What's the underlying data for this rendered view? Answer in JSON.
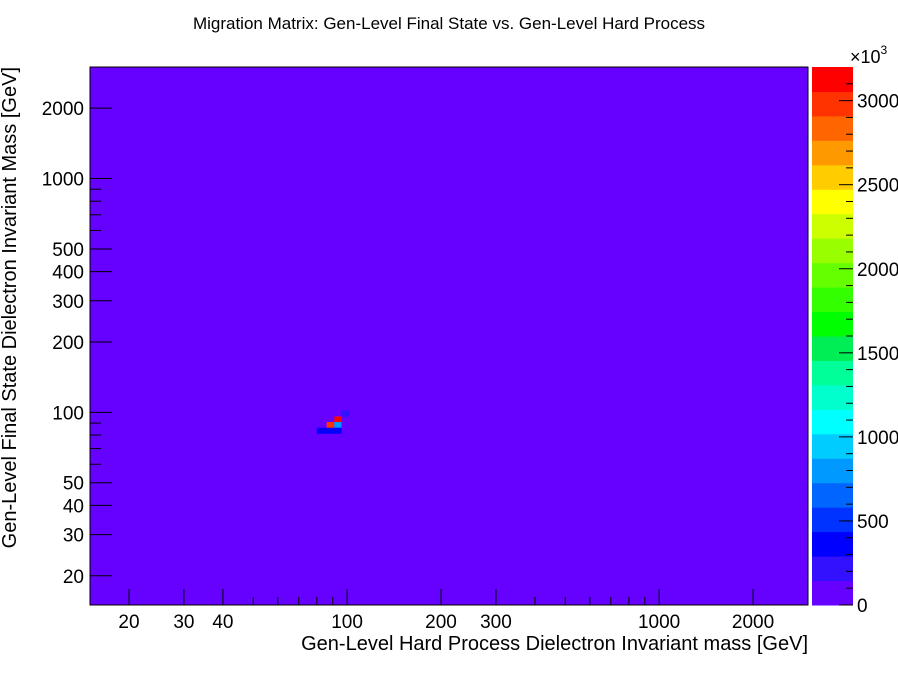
{
  "chart_data": {
    "type": "heatmap",
    "title": "Migration Matrix: Gen-Level Final State vs. Gen-Level Hard Process",
    "xlabel": "Gen-Level Hard Process Dielectron Invariant mass [GeV]",
    "ylabel": "Gen-Level Final State Dielectron Invariant Mass [GeV]",
    "x_scale": "log",
    "y_scale": "log",
    "xlim": [
      15,
      3000
    ],
    "ylim": [
      15,
      3000
    ],
    "x_ticks": [
      {
        "value": 20,
        "label": "20"
      },
      {
        "value": 30,
        "label": "30"
      },
      {
        "value": 40,
        "label": "40"
      },
      {
        "value": 100,
        "label": "100"
      },
      {
        "value": 200,
        "label": "200"
      },
      {
        "value": 300,
        "label": "300"
      },
      {
        "value": 1000,
        "label": "1000"
      },
      {
        "value": 2000,
        "label": "2000"
      }
    ],
    "y_ticks": [
      {
        "value": 20,
        "label": "20"
      },
      {
        "value": 30,
        "label": "30"
      },
      {
        "value": 40,
        "label": "40"
      },
      {
        "value": 50,
        "label": "50"
      },
      {
        "value": 100,
        "label": "100"
      },
      {
        "value": 200,
        "label": "200"
      },
      {
        "value": 300,
        "label": "300"
      },
      {
        "value": 400,
        "label": "400"
      },
      {
        "value": 500,
        "label": "500"
      },
      {
        "value": 1000,
        "label": "1000"
      },
      {
        "value": 2000,
        "label": "2000"
      }
    ],
    "background_value": 0,
    "cells": [
      {
        "x0": 80,
        "x1": 86,
        "y0": 81,
        "y1": 86,
        "z": 400
      },
      {
        "x0": 86,
        "x1": 91,
        "y0": 81,
        "y1": 86,
        "z": 400
      },
      {
        "x0": 91,
        "x1": 96,
        "y0": 81,
        "y1": 86,
        "z": 400
      },
      {
        "x0": 86,
        "x1": 91,
        "y0": 86,
        "y1": 91,
        "z": 3000
      },
      {
        "x0": 91,
        "x1": 96,
        "y0": 86,
        "y1": 91,
        "z": 850
      },
      {
        "x0": 91,
        "x1": 96,
        "y0": 91,
        "y1": 96,
        "z": 3150
      },
      {
        "x0": 96,
        "x1": 102,
        "y0": 96,
        "y1": 102,
        "z": 150
      }
    ],
    "colorbar": {
      "zmin": 0,
      "zmax": 3200,
      "multiplier_label": "×10",
      "multiplier_exp": "3",
      "ticks": [
        {
          "value": 0,
          "label": "0"
        },
        {
          "value": 500,
          "label": "500"
        },
        {
          "value": 1000,
          "label": "1000"
        },
        {
          "value": 1500,
          "label": "1500"
        },
        {
          "value": 2000,
          "label": "2000"
        },
        {
          "value": 2500,
          "label": "2500"
        },
        {
          "value": 3000,
          "label": "3000"
        }
      ],
      "colors": [
        "#6600ff",
        "#3311ff",
        "#0000ff",
        "#0033ff",
        "#0066ff",
        "#0099ff",
        "#00ccff",
        "#00ffff",
        "#00ffcc",
        "#00ff99",
        "#00ee55",
        "#00ff00",
        "#33ff00",
        "#66ff00",
        "#99ff00",
        "#ccff00",
        "#ffff00",
        "#ffcc00",
        "#ff9900",
        "#ff6600",
        "#ff3300",
        "#ff0000"
      ]
    }
  }
}
